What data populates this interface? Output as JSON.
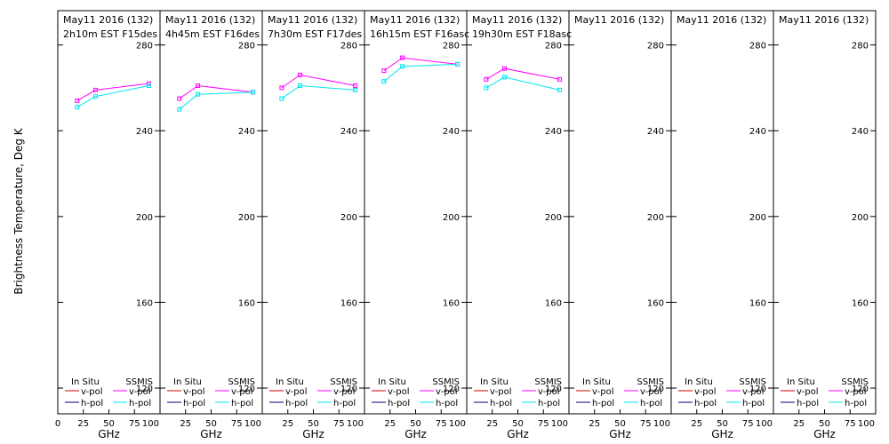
{
  "chart_data": {
    "type": "line",
    "ylabel": "Brightness Temperature, Deg K",
    "xlabel": "GHz",
    "ylim": [
      108,
      296
    ],
    "xlim": [
      0,
      100
    ],
    "y_ticks": [
      120,
      160,
      200,
      240,
      280
    ],
    "x_ticks": [
      0,
      25,
      50,
      75,
      100
    ],
    "x_tick_labels": [
      "0",
      "25",
      "50",
      "75",
      "100"
    ],
    "x_tick_labels_inner": [
      "25",
      "50",
      "75",
      "100"
    ],
    "legend": {
      "in_situ_label": "In Situ",
      "ssmis_label": "SSMIS",
      "vpol_label": "v-pol",
      "hpol_label": "h-pol",
      "in_situ_vpol_color": "#cc0000",
      "in_situ_hpol_color": "#000080",
      "ssmis_vpol_color": "#ff00ff",
      "ssmis_hpol_color": "#00e5ee"
    },
    "grid": false,
    "panels": [
      {
        "title1": "May11 2016 (132)",
        "title2": "2h10m  EST  F15des",
        "series": [
          {
            "pol": "v",
            "x": [
              19,
              37,
              89
            ],
            "y": [
              254,
              259,
              262
            ]
          },
          {
            "pol": "h",
            "x": [
              19,
              37,
              89
            ],
            "y": [
              251,
              256,
              261
            ]
          }
        ]
      },
      {
        "title1": "May11 2016 (132)",
        "title2": "4h45m  EST  F16des",
        "series": [
          {
            "pol": "v",
            "x": [
              19,
              37,
              91
            ],
            "y": [
              255,
              261,
              258
            ]
          },
          {
            "pol": "h",
            "x": [
              19,
              37,
              91
            ],
            "y": [
              250,
              257,
              258
            ]
          }
        ]
      },
      {
        "title1": "May11 2016 (132)",
        "title2": "7h30m  EST  F17des",
        "series": [
          {
            "pol": "v",
            "x": [
              19,
              37,
              91
            ],
            "y": [
              260,
              266,
              261
            ]
          },
          {
            "pol": "h",
            "x": [
              19,
              37,
              91
            ],
            "y": [
              255,
              261,
              259
            ]
          }
        ]
      },
      {
        "title1": "May11 2016 (132)",
        "title2": "16h15m  EST  F16asc",
        "series": [
          {
            "pol": "v",
            "x": [
              19,
              37,
              91
            ],
            "y": [
              268,
              274,
              271
            ]
          },
          {
            "pol": "h",
            "x": [
              19,
              37,
              91
            ],
            "y": [
              263,
              270,
              271
            ]
          }
        ]
      },
      {
        "title1": "May11 2016 (132)",
        "title2": "19h30m  EST  F18asc",
        "series": [
          {
            "pol": "v",
            "x": [
              19,
              37,
              91
            ],
            "y": [
              264,
              269,
              264
            ]
          },
          {
            "pol": "h",
            "x": [
              19,
              37,
              91
            ],
            "y": [
              260,
              265,
              259
            ]
          }
        ]
      },
      {
        "title1": "May11 2016 (132)",
        "title2": "",
        "series": []
      },
      {
        "title1": "May11 2016 (132)",
        "title2": "",
        "series": []
      },
      {
        "title1": "May11 2016 (132)",
        "title2": "",
        "series": []
      }
    ]
  }
}
